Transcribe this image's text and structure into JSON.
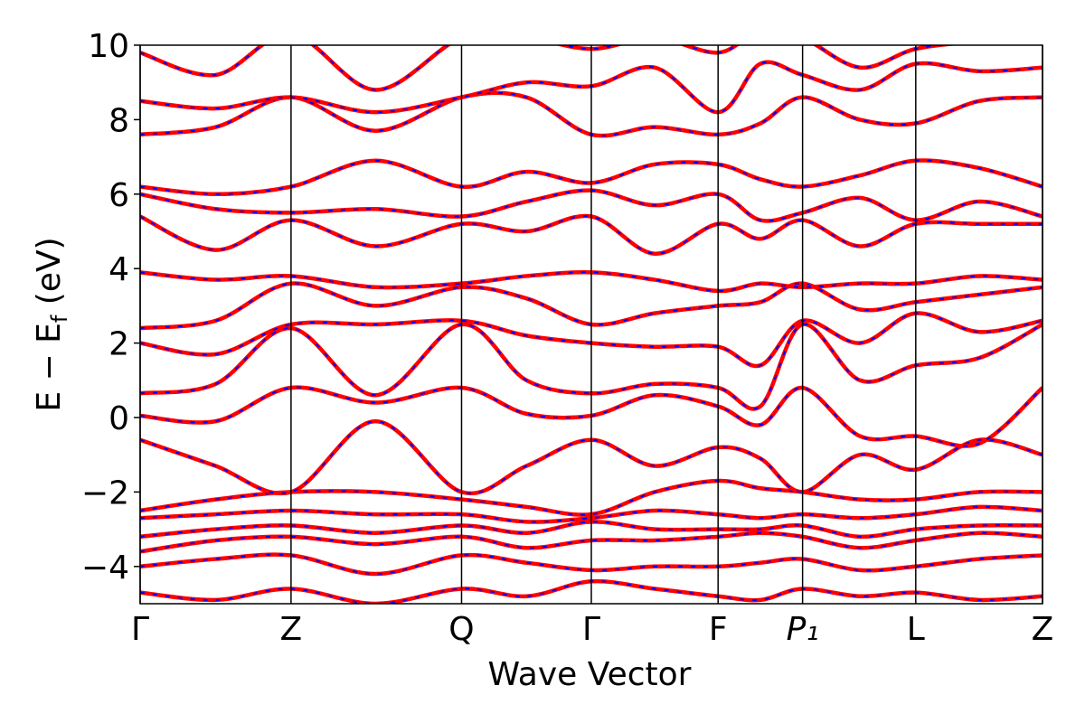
{
  "chart_data": {
    "type": "band_structure",
    "x_label": "Wave Vector",
    "y_label": [
      "E − E",
      "f",
      " (eV)"
    ],
    "x": [
      0,
      0.5,
      1.0,
      1.56,
      2.13,
      2.56,
      2.99,
      3.41,
      3.83,
      4.11,
      4.39,
      4.77,
      5.14,
      5.56,
      5.98
    ],
    "xlim": [
      0,
      5.98
    ],
    "xticks": [
      {
        "value": 0,
        "label": "Γ"
      },
      {
        "value": 1.0,
        "label": "Z"
      },
      {
        "value": 2.13,
        "label": "Q"
      },
      {
        "value": 2.99,
        "label": "Γ"
      },
      {
        "value": 3.83,
        "label": "F"
      },
      {
        "value": 4.39,
        "label": "P₁"
      },
      {
        "value": 5.14,
        "label": "L"
      },
      {
        "value": 5.98,
        "label": "Z"
      }
    ],
    "ylim": [
      -5,
      10
    ],
    "yticks": [
      {
        "value": -4,
        "label": "−4"
      },
      {
        "value": -2,
        "label": "−2"
      },
      0,
      2,
      4,
      6,
      8,
      10
    ],
    "line_color": "#ff0000",
    "dash_color": "#0000ff",
    "series": [
      {
        "values": [
          -4.7,
          -4.9,
          -4.6,
          -5.0,
          -4.6,
          -4.8,
          -4.4,
          -4.6,
          -4.8,
          -4.9,
          -4.6,
          -4.8,
          -4.7,
          -4.9,
          -4.8
        ]
      },
      {
        "values": [
          -4.0,
          -3.8,
          -3.7,
          -4.2,
          -3.7,
          -3.9,
          -4.1,
          -4.0,
          -4.0,
          -3.9,
          -3.8,
          -4.1,
          -4.0,
          -3.8,
          -3.7
        ]
      },
      {
        "values": [
          -3.6,
          -3.3,
          -3.2,
          -3.4,
          -3.2,
          -3.5,
          -3.3,
          -3.3,
          -3.2,
          -3.1,
          -3.2,
          -3.5,
          -3.3,
          -3.1,
          -3.2
        ]
      },
      {
        "values": [
          -3.2,
          -3.0,
          -2.9,
          -3.1,
          -2.9,
          -3.1,
          -2.8,
          -3.0,
          -3.0,
          -3.0,
          -2.9,
          -3.2,
          -3.0,
          -2.9,
          -2.9
        ]
      },
      {
        "values": [
          -2.7,
          -2.6,
          -2.5,
          -2.6,
          -2.6,
          -2.8,
          -2.7,
          -2.5,
          -2.6,
          -2.7,
          -2.6,
          -2.7,
          -2.6,
          -2.4,
          -2.5
        ]
      },
      {
        "values": [
          -2.5,
          -2.2,
          -2.0,
          -2.0,
          -2.2,
          -2.4,
          -2.6,
          -2.0,
          -1.7,
          -1.9,
          -2.0,
          -2.2,
          -2.2,
          -2.0,
          -2.0
        ]
      },
      {
        "values": [
          -0.6,
          -1.3,
          -2.0,
          -0.1,
          -2.0,
          -1.3,
          -0.6,
          -1.3,
          -0.8,
          -1.1,
          -2.0,
          -1.0,
          -1.4,
          -0.6,
          -1.0
        ]
      },
      {
        "values": [
          0.05,
          -0.1,
          0.8,
          0.4,
          0.8,
          0.1,
          0.05,
          0.6,
          0.3,
          -0.2,
          0.8,
          -0.5,
          -0.5,
          -0.7,
          0.8
        ]
      },
      {
        "values": [
          0.65,
          0.9,
          2.4,
          0.6,
          2.5,
          1.0,
          0.65,
          0.9,
          0.8,
          0.3,
          2.5,
          1.0,
          1.4,
          1.6,
          2.5
        ]
      },
      {
        "values": [
          2.0,
          1.7,
          2.5,
          2.5,
          2.6,
          2.2,
          2.0,
          1.9,
          1.9,
          1.4,
          2.6,
          2.0,
          2.8,
          2.3,
          2.6
        ]
      },
      {
        "values": [
          2.4,
          2.6,
          3.6,
          3.0,
          3.5,
          3.2,
          2.5,
          2.8,
          3.0,
          3.1,
          3.6,
          2.9,
          3.1,
          3.3,
          3.5
        ]
      },
      {
        "values": [
          3.9,
          3.7,
          3.8,
          3.5,
          3.6,
          3.8,
          3.9,
          3.7,
          3.4,
          3.6,
          3.5,
          3.6,
          3.6,
          3.8,
          3.7
        ]
      },
      {
        "values": [
          5.4,
          4.5,
          5.3,
          4.6,
          5.2,
          5.0,
          5.4,
          4.4,
          5.2,
          4.8,
          5.3,
          4.6,
          5.2,
          5.2,
          5.2
        ]
      },
      {
        "values": [
          6.0,
          5.6,
          5.5,
          5.6,
          5.4,
          5.8,
          6.1,
          5.7,
          6.0,
          5.3,
          5.5,
          5.9,
          5.3,
          5.8,
          5.4
        ]
      },
      {
        "values": [
          6.2,
          6.0,
          6.2,
          6.9,
          6.2,
          6.6,
          6.3,
          6.8,
          6.8,
          6.4,
          6.2,
          6.5,
          6.9,
          6.7,
          6.2
        ]
      },
      {
        "values": [
          7.6,
          7.8,
          8.6,
          7.7,
          8.6,
          8.6,
          7.6,
          7.8,
          7.6,
          7.9,
          8.6,
          8.0,
          7.9,
          8.5,
          8.6
        ]
      },
      {
        "values": [
          8.5,
          8.3,
          8.6,
          8.2,
          8.6,
          9.0,
          8.9,
          9.4,
          8.2,
          9.5,
          9.2,
          8.8,
          9.5,
          9.3,
          9.4
        ]
      },
      {
        "values": [
          9.8,
          9.2,
          10.3,
          8.8,
          10.2,
          10.2,
          9.9,
          10.2,
          9.8,
          10.4,
          10.2,
          9.4,
          9.9,
          10.1,
          10.2
        ]
      }
    ]
  }
}
